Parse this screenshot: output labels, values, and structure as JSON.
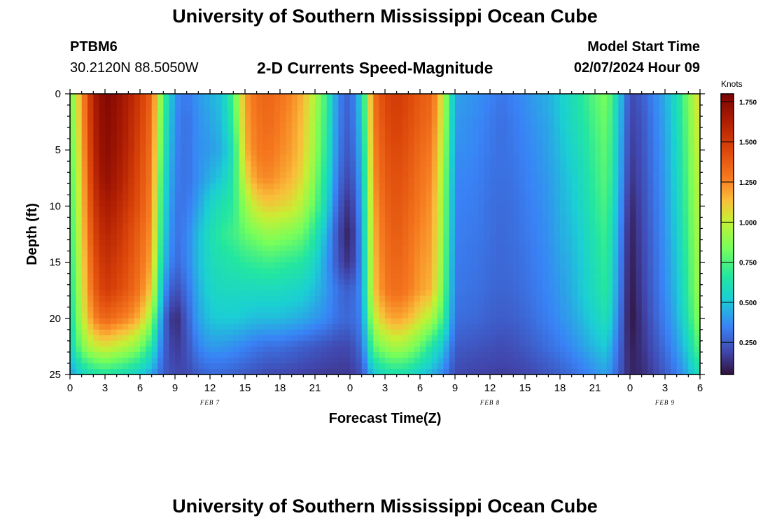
{
  "header": {
    "title": "University of Southern Mississippi Ocean Cube",
    "station_id": "PTBM6",
    "coordinates": "30.2120N  88.5050W",
    "chart_title": "2-D Currents Speed-Magnitude",
    "model_start_label": "Model Start Time",
    "model_start_value": "02/07/2024 Hour 09"
  },
  "footer": {
    "title": "University of Southern Mississippi Ocean Cube"
  },
  "chart_data": {
    "type": "heatmap",
    "title": "2-D Currents Speed-Magnitude",
    "xlabel": "Forecast Time(Z)",
    "ylabel": "Depth (ft)",
    "x_range_hours": [
      0,
      54
    ],
    "ylim": [
      25,
      0
    ],
    "x_tick_labels": [
      "0",
      "3",
      "6",
      "9",
      "12",
      "15",
      "18",
      "21",
      "0",
      "3",
      "6",
      "9",
      "12",
      "15",
      "18",
      "21",
      "0",
      "3",
      "6"
    ],
    "y_tick_labels": [
      "0",
      "5",
      "10",
      "15",
      "20",
      "25"
    ],
    "date_labels": [
      {
        "text": "FEB 7",
        "hour": 12
      },
      {
        "text": "FEB 8",
        "hour": 36
      },
      {
        "text": "FEB 9",
        "hour": 51
      }
    ],
    "colorbar": {
      "unit": "Knots",
      "min": 0.05,
      "max": 1.8,
      "ticks": [
        "0.250",
        "0.500",
        "0.750",
        "1.000",
        "1.250",
        "1.500",
        "1.750"
      ],
      "tick_values": [
        0.25,
        0.5,
        0.75,
        1.0,
        1.25,
        1.5,
        1.75
      ],
      "colormap": "turbo"
    },
    "depths_ft": [
      0,
      2.5,
      5,
      7.5,
      10,
      12.5,
      15,
      17.5,
      20,
      22.5,
      25
    ],
    "times_hr": [
      0,
      1,
      2,
      3,
      4,
      5,
      6,
      7,
      8,
      9,
      10,
      11,
      12,
      13,
      14,
      15,
      16,
      17,
      18,
      19,
      20,
      21,
      22,
      23,
      24,
      25,
      26,
      27,
      28,
      29,
      30,
      31,
      32,
      33,
      34,
      35,
      36,
      37,
      38,
      39,
      40,
      41,
      42,
      43,
      44,
      45,
      46,
      47,
      48,
      49,
      50,
      51,
      52,
      53,
      54
    ],
    "speed_knots": [
      [
        0.8,
        1.2,
        1.62,
        1.78,
        1.72,
        1.62,
        1.5,
        1.35,
        0.75,
        0.38,
        0.32,
        0.4,
        0.45,
        0.5,
        0.75,
        1.2,
        1.32,
        1.35,
        1.3,
        1.25,
        1.15,
        0.95,
        0.7,
        0.35,
        0.25,
        0.55,
        1.3,
        1.45,
        1.5,
        1.45,
        1.38,
        1.35,
        1.0,
        0.42,
        0.4,
        0.38,
        0.35,
        0.32,
        0.35,
        0.38,
        0.42,
        0.45,
        0.52,
        0.6,
        0.68,
        0.78,
        0.85,
        0.55,
        0.2,
        0.25,
        0.35,
        0.45,
        0.6,
        0.85,
        1.1
      ],
      [
        0.78,
        1.18,
        1.6,
        1.76,
        1.7,
        1.6,
        1.48,
        1.32,
        0.72,
        0.36,
        0.3,
        0.38,
        0.42,
        0.48,
        0.7,
        1.18,
        1.3,
        1.33,
        1.28,
        1.22,
        1.12,
        0.92,
        0.68,
        0.34,
        0.24,
        0.52,
        1.28,
        1.43,
        1.48,
        1.43,
        1.36,
        1.32,
        0.98,
        0.4,
        0.38,
        0.36,
        0.33,
        0.3,
        0.33,
        0.36,
        0.4,
        0.43,
        0.5,
        0.58,
        0.65,
        0.75,
        0.82,
        0.52,
        0.18,
        0.23,
        0.33,
        0.43,
        0.58,
        0.82,
        1.08
      ],
      [
        0.75,
        1.15,
        1.58,
        1.75,
        1.68,
        1.58,
        1.45,
        1.3,
        0.68,
        0.35,
        0.3,
        0.38,
        0.4,
        0.45,
        0.62,
        1.15,
        1.28,
        1.3,
        1.25,
        1.2,
        1.1,
        0.9,
        0.65,
        0.33,
        0.22,
        0.48,
        1.25,
        1.4,
        1.45,
        1.4,
        1.33,
        1.28,
        0.95,
        0.38,
        0.37,
        0.35,
        0.32,
        0.3,
        0.32,
        0.35,
        0.38,
        0.42,
        0.48,
        0.55,
        0.62,
        0.72,
        0.8,
        0.5,
        0.16,
        0.22,
        0.32,
        0.42,
        0.56,
        0.8,
        1.05
      ],
      [
        0.72,
        1.12,
        1.55,
        1.72,
        1.65,
        1.55,
        1.42,
        1.28,
        0.62,
        0.34,
        0.3,
        0.38,
        0.45,
        0.52,
        0.65,
        1.05,
        1.22,
        1.25,
        1.2,
        1.15,
        1.05,
        0.85,
        0.6,
        0.3,
        0.18,
        0.45,
        1.22,
        1.38,
        1.42,
        1.38,
        1.3,
        1.25,
        0.92,
        0.36,
        0.35,
        0.34,
        0.31,
        0.3,
        0.31,
        0.34,
        0.37,
        0.4,
        0.46,
        0.52,
        0.6,
        0.7,
        0.78,
        0.48,
        0.14,
        0.21,
        0.31,
        0.41,
        0.55,
        0.78,
        1.02
      ],
      [
        0.7,
        1.1,
        1.5,
        1.65,
        1.6,
        1.5,
        1.4,
        1.25,
        0.58,
        0.32,
        0.32,
        0.42,
        0.55,
        0.62,
        0.68,
        0.9,
        1.05,
        1.1,
        1.08,
        1.05,
        0.95,
        0.78,
        0.55,
        0.25,
        0.12,
        0.42,
        1.18,
        1.35,
        1.4,
        1.35,
        1.28,
        1.22,
        0.9,
        0.35,
        0.34,
        0.33,
        0.3,
        0.29,
        0.3,
        0.33,
        0.36,
        0.39,
        0.45,
        0.5,
        0.58,
        0.68,
        0.75,
        0.45,
        0.1,
        0.2,
        0.3,
        0.4,
        0.54,
        0.76,
        1.0
      ],
      [
        0.68,
        1.08,
        1.45,
        1.6,
        1.55,
        1.45,
        1.35,
        1.22,
        0.55,
        0.3,
        0.35,
        0.48,
        0.6,
        0.68,
        0.72,
        0.8,
        0.85,
        0.9,
        0.88,
        0.85,
        0.8,
        0.65,
        0.45,
        0.2,
        0.08,
        0.4,
        1.15,
        1.32,
        1.38,
        1.32,
        1.25,
        1.2,
        0.88,
        0.34,
        0.33,
        0.32,
        0.3,
        0.28,
        0.3,
        0.32,
        0.35,
        0.38,
        0.44,
        0.48,
        0.55,
        0.65,
        0.72,
        0.42,
        0.08,
        0.19,
        0.29,
        0.39,
        0.52,
        0.74,
        0.98
      ],
      [
        0.65,
        1.05,
        1.4,
        1.55,
        1.5,
        1.42,
        1.32,
        1.18,
        0.5,
        0.28,
        0.35,
        0.48,
        0.58,
        0.62,
        0.65,
        0.68,
        0.7,
        0.72,
        0.7,
        0.68,
        0.65,
        0.55,
        0.4,
        0.22,
        0.12,
        0.38,
        1.12,
        1.3,
        1.35,
        1.3,
        1.22,
        1.18,
        0.85,
        0.33,
        0.32,
        0.31,
        0.29,
        0.28,
        0.29,
        0.31,
        0.34,
        0.37,
        0.42,
        0.46,
        0.53,
        0.62,
        0.7,
        0.4,
        0.07,
        0.18,
        0.28,
        0.38,
        0.5,
        0.72,
        0.96
      ],
      [
        0.62,
        1.02,
        1.35,
        1.5,
        1.45,
        1.38,
        1.28,
        1.1,
        0.4,
        0.2,
        0.3,
        0.45,
        0.55,
        0.58,
        0.58,
        0.58,
        0.58,
        0.58,
        0.58,
        0.56,
        0.54,
        0.48,
        0.4,
        0.3,
        0.25,
        0.38,
        1.1,
        1.28,
        1.32,
        1.28,
        1.2,
        1.15,
        0.82,
        0.32,
        0.31,
        0.3,
        0.28,
        0.27,
        0.28,
        0.3,
        0.33,
        0.36,
        0.4,
        0.45,
        0.52,
        0.6,
        0.68,
        0.38,
        0.06,
        0.17,
        0.27,
        0.37,
        0.48,
        0.7,
        0.94
      ],
      [
        0.58,
        0.98,
        1.25,
        1.35,
        1.3,
        1.25,
        1.15,
        0.9,
        0.3,
        0.1,
        0.25,
        0.42,
        0.5,
        0.52,
        0.52,
        0.5,
        0.48,
        0.48,
        0.48,
        0.46,
        0.44,
        0.4,
        0.36,
        0.3,
        0.28,
        0.35,
        0.98,
        1.15,
        1.2,
        1.15,
        1.05,
        0.95,
        0.72,
        0.3,
        0.29,
        0.28,
        0.26,
        0.25,
        0.26,
        0.28,
        0.31,
        0.34,
        0.38,
        0.42,
        0.48,
        0.55,
        0.62,
        0.35,
        0.05,
        0.15,
        0.25,
        0.35,
        0.45,
        0.65,
        0.9
      ],
      [
        0.55,
        0.85,
        1.0,
        1.05,
        1.0,
        0.95,
        0.85,
        0.65,
        0.28,
        0.15,
        0.22,
        0.35,
        0.4,
        0.4,
        0.38,
        0.35,
        0.32,
        0.3,
        0.3,
        0.28,
        0.26,
        0.24,
        0.22,
        0.2,
        0.2,
        0.3,
        0.78,
        0.9,
        0.95,
        0.9,
        0.8,
        0.65,
        0.5,
        0.25,
        0.24,
        0.23,
        0.22,
        0.21,
        0.22,
        0.24,
        0.27,
        0.3,
        0.33,
        0.37,
        0.42,
        0.48,
        0.52,
        0.3,
        0.08,
        0.14,
        0.22,
        0.3,
        0.4,
        0.55,
        0.8
      ],
      [
        0.4,
        0.55,
        0.62,
        0.65,
        0.62,
        0.58,
        0.52,
        0.42,
        0.25,
        0.2,
        0.2,
        0.25,
        0.28,
        0.28,
        0.26,
        0.24,
        0.22,
        0.2,
        0.2,
        0.19,
        0.18,
        0.17,
        0.16,
        0.16,
        0.16,
        0.22,
        0.5,
        0.6,
        0.62,
        0.6,
        0.52,
        0.45,
        0.35,
        0.2,
        0.19,
        0.18,
        0.18,
        0.17,
        0.18,
        0.19,
        0.21,
        0.23,
        0.26,
        0.29,
        0.33,
        0.38,
        0.42,
        0.26,
        0.1,
        0.12,
        0.18,
        0.25,
        0.33,
        0.45,
        0.62
      ]
    ]
  }
}
